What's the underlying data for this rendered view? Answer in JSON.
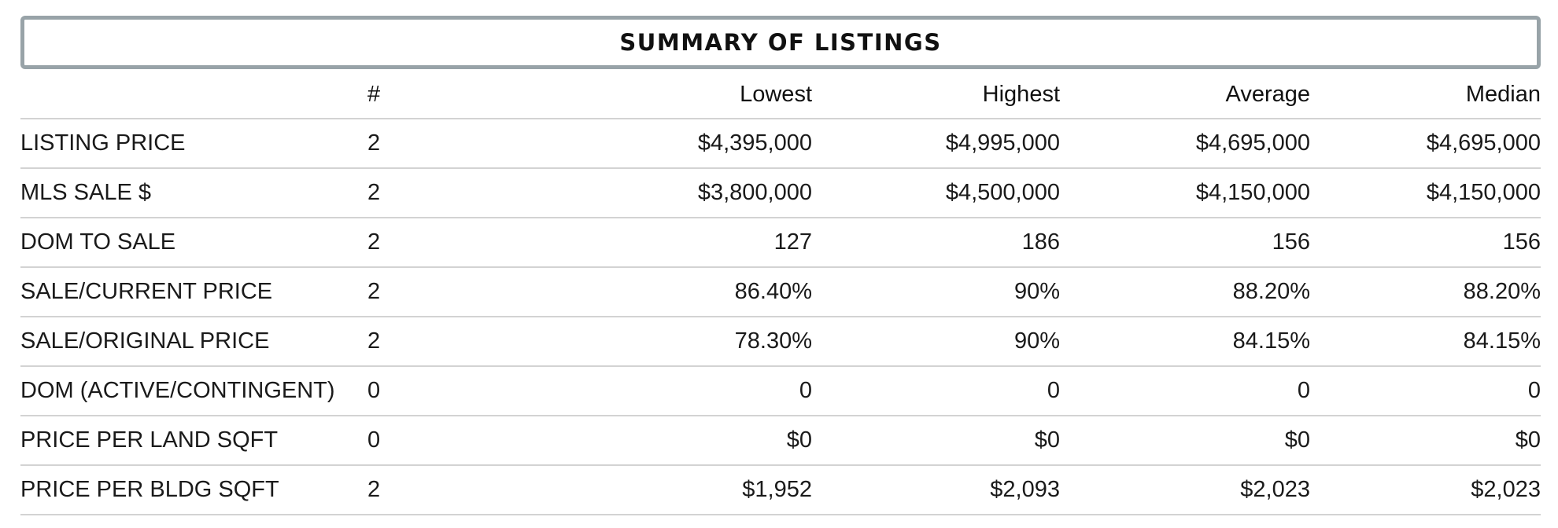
{
  "summary": {
    "title": "SUMMARY OF LISTINGS",
    "headers": [
      "",
      "#",
      "Lowest",
      "Highest",
      "Average",
      "Median"
    ],
    "rows": [
      {
        "label": "LISTING PRICE",
        "count": "2",
        "lowest": "$4,395,000",
        "highest": "$4,995,000",
        "average": "$4,695,000",
        "median": "$4,695,000"
      },
      {
        "label": "MLS SALE $",
        "count": "2",
        "lowest": "$3,800,000",
        "highest": "$4,500,000",
        "average": "$4,150,000",
        "median": "$4,150,000"
      },
      {
        "label": "DOM TO SALE",
        "count": "2",
        "lowest": "127",
        "highest": "186",
        "average": "156",
        "median": "156"
      },
      {
        "label": "SALE/CURRENT PRICE",
        "count": "2",
        "lowest": "86.40%",
        "highest": "90%",
        "average": "88.20%",
        "median": "88.20%"
      },
      {
        "label": "SALE/ORIGINAL PRICE",
        "count": "2",
        "lowest": "78.30%",
        "highest": "90%",
        "average": "84.15%",
        "median": "84.15%"
      },
      {
        "label": "DOM (ACTIVE/CONTINGENT)",
        "count": "0",
        "lowest": "0",
        "highest": "0",
        "average": "0",
        "median": "0"
      },
      {
        "label": "PRICE PER LAND SQFT",
        "count": "0",
        "lowest": "$0",
        "highest": "$0",
        "average": "$0",
        "median": "$0"
      },
      {
        "label": "PRICE PER BLDG SQFT",
        "count": "2",
        "lowest": "$1,952",
        "highest": "$2,093",
        "average": "$2,023",
        "median": "$2,023"
      }
    ]
  }
}
